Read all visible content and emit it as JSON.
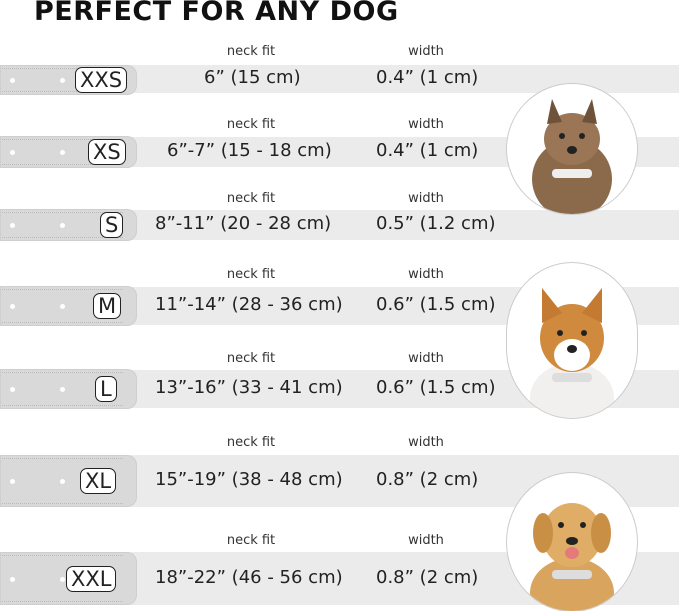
{
  "title": "PERFECT FOR ANY DOG",
  "column_labels": {
    "neck": "neck fit",
    "width": "width"
  },
  "rows": [
    {
      "size": "XXS",
      "neck_fit": "6” (15 cm)",
      "width": "0.4” (1 cm)"
    },
    {
      "size": "XS",
      "neck_fit": "6”-7” (15 - 18 cm)",
      "width": "0.4” (1 cm)"
    },
    {
      "size": "S",
      "neck_fit": "8”-11” (20 - 28 cm)",
      "width": "0.5” (1.2 cm)"
    },
    {
      "size": "M",
      "neck_fit": "11”-14” (28 - 36 cm)",
      "width": "0.6” (1.5 cm)"
    },
    {
      "size": "L",
      "neck_fit": "13”-16” (33 - 41 cm)",
      "width": "0.6” (1.5 cm)"
    },
    {
      "size": "XL",
      "neck_fit": "15”-19” (38 - 48 cm)",
      "width": "0.8” (2 cm)"
    },
    {
      "size": "XXL",
      "neck_fit": "18”-22” (46 - 56 cm)",
      "width": "0.8” (2 cm)"
    }
  ],
  "images": [
    "small-terrier-dog-photo",
    "corgi-dog-photo",
    "labrador-dog-photo"
  ],
  "colors": {
    "band": "#ebebeb",
    "strap": "#d9d9d9",
    "text": "#222222"
  }
}
